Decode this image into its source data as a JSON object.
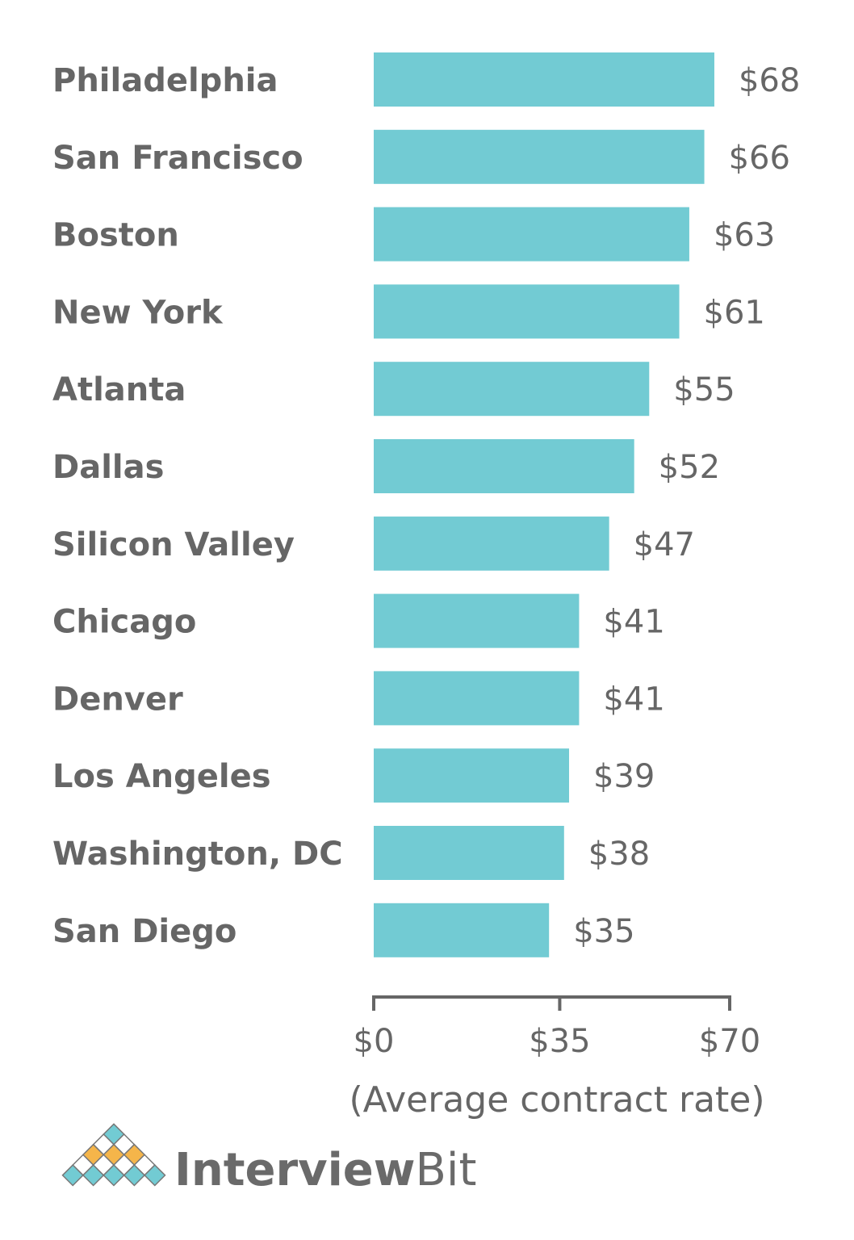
{
  "chart_data": {
    "type": "bar",
    "orientation": "horizontal",
    "categories": [
      "Philadelphia",
      "San Francisco",
      "Boston",
      "New York",
      "Atlanta",
      "Dallas",
      "Silicon Valley",
      "Chicago",
      "Denver",
      "Los Angeles",
      "Washington, DC",
      "San Diego"
    ],
    "values": [
      68,
      66,
      63,
      61,
      55,
      52,
      47,
      41,
      41,
      39,
      38,
      35
    ],
    "value_labels": [
      "$68",
      "$66",
      "$63",
      "$61",
      "$55",
      "$52",
      "$47",
      "$41",
      "$41",
      "$39",
      "$38",
      "$35"
    ],
    "xlabel": "(Average contract rate)",
    "xticks": [
      0,
      35,
      70
    ],
    "xtick_labels": [
      "$0",
      "$35",
      "$70"
    ],
    "xlim": [
      0,
      70
    ],
    "grid": false,
    "bar_color": "#72cbd3",
    "text_color": "#666666"
  },
  "brand": {
    "name_part1": "Interview",
    "name_part2": "Bit",
    "colors": {
      "teal": "#72cbd3",
      "orange": "#f5b54a"
    }
  }
}
